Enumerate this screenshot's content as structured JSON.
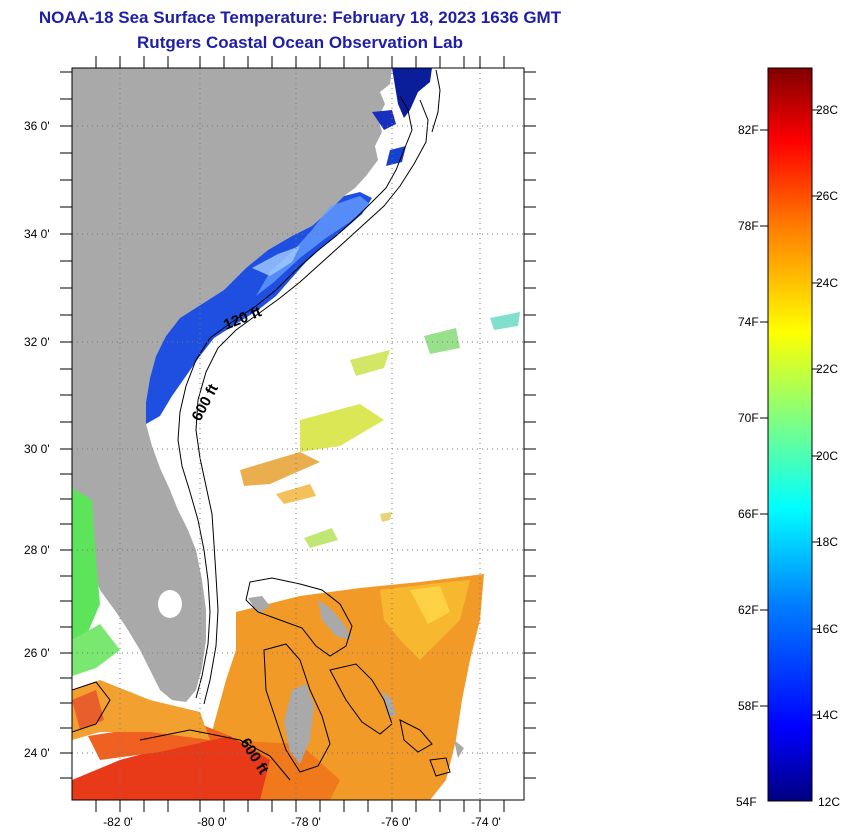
{
  "header": {
    "title": "NOAA-18 Sea Surface Temperature:  February 18, 2023 1636 GMT",
    "subtitle": "Rutgers Coastal Ocean Observation Lab"
  },
  "map": {
    "lat_labels": [
      "36 0'",
      "34 0'",
      "32 0'",
      "30 0'",
      "28 0'",
      "26 0'",
      "24 0'"
    ],
    "lon_labels": [
      "-82 0'",
      "-80 0'",
      "-78 0'",
      "-76 0'",
      "-74 0'"
    ],
    "contour_labels": [
      "120 ft",
      "600 ft",
      "600 ft"
    ],
    "land_color": "#a9a9a9"
  },
  "colorbar": {
    "fahrenheit_labels": [
      "82F",
      "78F",
      "74F",
      "70F",
      "66F",
      "62F",
      "58F",
      "54F"
    ],
    "celsius_labels": [
      "28C",
      "26C",
      "24C",
      "22C",
      "20C",
      "18C",
      "16C",
      "14C",
      "12C"
    ],
    "range_celsius": [
      12,
      29
    ],
    "colors": [
      "#000080",
      "#0000ff",
      "#0080ff",
      "#00ffff",
      "#80ff80",
      "#ffff00",
      "#ff8000",
      "#ff0000",
      "#800000"
    ]
  }
}
